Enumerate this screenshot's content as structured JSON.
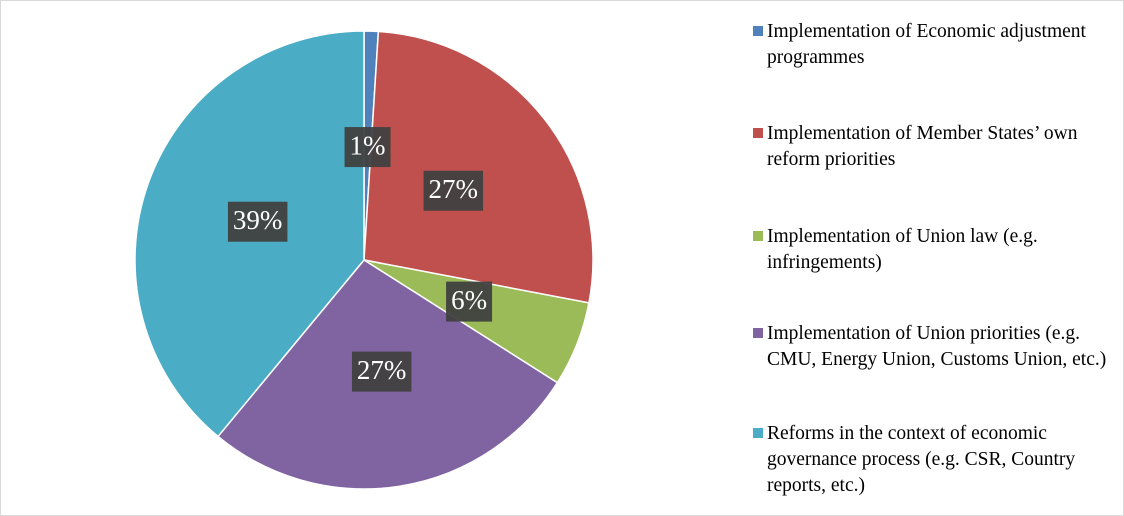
{
  "chart_data": {
    "type": "pie",
    "categories": [
      "Implementation of Economic adjustment programmes",
      "Implementation of Member States’ own reform priorities",
      "Implementation of Union law (e.g. infringements)",
      "Implementation of Union priorities (e.g. CMU, Energy Union, Customs Union, etc.)",
      "Reforms in the context of economic governance process (e.g. CSR, Country reports, etc.)"
    ],
    "values": [
      1,
      27,
      6,
      27,
      39
    ],
    "value_labels": [
      "1%",
      "27%",
      "6%",
      "27%",
      "39%"
    ],
    "colors": [
      "#4f81bd",
      "#c0504d",
      "#9bbb59",
      "#8064a2",
      "#4bacc6"
    ]
  }
}
